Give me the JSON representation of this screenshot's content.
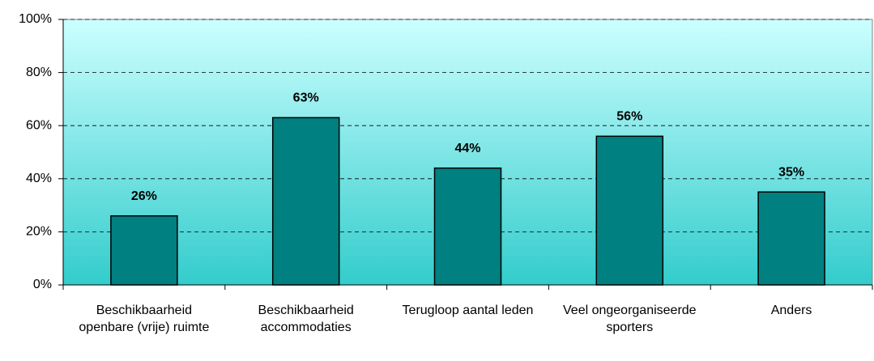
{
  "chart_data": {
    "type": "bar",
    "categories": [
      "Beschikbaarheid openbare (vrije) ruimte",
      "Beschikbaarheid accommodaties",
      "Terugloop aantal leden",
      "Veel ongeorganiseerde sporters",
      "Anders"
    ],
    "values": [
      26,
      63,
      44,
      56,
      35
    ],
    "value_labels": [
      "26%",
      "63%",
      "44%",
      "56%",
      "35%"
    ],
    "color": "#008080",
    "ylim": [
      0,
      100
    ],
    "yticks": [
      {
        "value": 0,
        "label": "0%"
      },
      {
        "value": 20,
        "label": "20%"
      },
      {
        "value": 40,
        "label": "40%"
      },
      {
        "value": 60,
        "label": "60%"
      },
      {
        "value": 80,
        "label": "80%"
      },
      {
        "value": 100,
        "label": "100%"
      }
    ],
    "grid": true
  }
}
